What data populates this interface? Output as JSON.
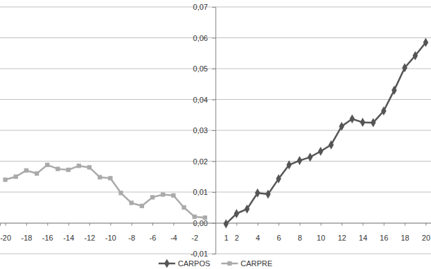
{
  "chart_data": {
    "type": "line",
    "x": [
      -20,
      -19,
      -18,
      -17,
      -16,
      -15,
      -14,
      -13,
      -12,
      -11,
      -10,
      -9,
      -8,
      -7,
      -6,
      -5,
      -4,
      -3,
      -2,
      -1,
      1,
      2,
      3,
      4,
      5,
      6,
      7,
      8,
      9,
      10,
      11,
      12,
      13,
      14,
      15,
      16,
      17,
      18,
      19,
      20
    ],
    "series": [
      {
        "name": "CARPOS",
        "color": "#555555",
        "marker": "diamond",
        "line_style": "solid",
        "values": [
          null,
          null,
          null,
          null,
          null,
          null,
          null,
          null,
          null,
          null,
          null,
          null,
          null,
          null,
          null,
          null,
          null,
          null,
          null,
          null,
          -0.0003,
          0.003,
          0.0045,
          0.0097,
          0.0093,
          0.0143,
          0.0188,
          0.0202,
          0.0213,
          0.0232,
          0.0253,
          0.0313,
          0.0337,
          0.0326,
          0.0325,
          0.0363,
          0.043,
          0.0503,
          0.0542,
          0.0585
        ]
      },
      {
        "name": "CARPRE",
        "color": "#aaaaaa",
        "marker": "square",
        "line_style": "solid",
        "values": [
          0.014,
          0.015,
          0.017,
          0.016,
          0.0188,
          0.0175,
          0.0172,
          0.0185,
          0.018,
          0.0148,
          0.0145,
          0.0097,
          0.0065,
          0.0055,
          0.0083,
          0.0092,
          0.0089,
          0.005,
          0.002,
          0.0017,
          null,
          null,
          null,
          null,
          null,
          null,
          null,
          null,
          null,
          null,
          null,
          null,
          null,
          null,
          null,
          null,
          null,
          null,
          null,
          null
        ]
      }
    ],
    "xlim": [
      -20.5,
      20.5
    ],
    "xticks": [
      -20,
      -18,
      -16,
      -14,
      -12,
      -10,
      -8,
      -6,
      -4,
      -2,
      1,
      2,
      4,
      6,
      8,
      10,
      12,
      14,
      16,
      18,
      20
    ],
    "ylim": [
      -0.01,
      0.07
    ],
    "yticks": [
      {
        "value": -0.01,
        "label": "-0,01"
      },
      {
        "value": 0,
        "label": "0,00"
      },
      {
        "value": 0.01,
        "label": "0,01"
      },
      {
        "value": 0.02,
        "label": "0,02"
      },
      {
        "value": 0.03,
        "label": "0,03"
      },
      {
        "value": 0.04,
        "label": "0,04"
      },
      {
        "value": 0.05,
        "label": "0,05"
      },
      {
        "value": 0.06,
        "label": "0,06"
      },
      {
        "value": 0.07,
        "label": "0,07"
      }
    ],
    "grid": true,
    "legend": "bottom"
  }
}
